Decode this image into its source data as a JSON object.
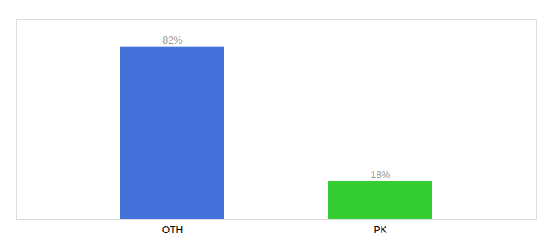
{
  "chart_data": {
    "type": "bar",
    "categories": [
      "OTH",
      "PK"
    ],
    "values": [
      82,
      18
    ],
    "value_labels": [
      "82%",
      "18%"
    ],
    "colors": [
      "#4472db",
      "#33cc33"
    ],
    "ylim": [
      0,
      95
    ],
    "tick_labels": "x",
    "data_labels": true
  }
}
